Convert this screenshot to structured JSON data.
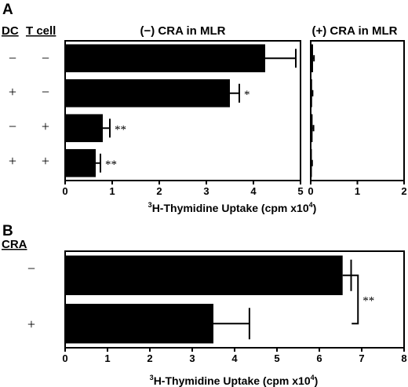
{
  "panel_a": {
    "letter": "A",
    "col_headers": [
      "DC",
      "T cell"
    ],
    "row_signs": [
      [
        "−",
        "−"
      ],
      [
        "+",
        "−"
      ],
      [
        "−",
        "+"
      ],
      [
        "+",
        "+"
      ]
    ]
  },
  "panel_b": {
    "letter": "B",
    "col_header": "CRA",
    "row_signs": [
      "−",
      "+"
    ]
  },
  "chart_data": [
    {
      "type": "bar",
      "orientation": "horizontal",
      "title": "(−) CRA in MLR",
      "categories": [
        "DC − / T cell −",
        "DC + / T cell −",
        "DC − / T cell +",
        "DC + / T cell +"
      ],
      "values": [
        4.25,
        3.5,
        0.8,
        0.65
      ],
      "errors": [
        0.65,
        0.2,
        0.15,
        0.1
      ],
      "annotations": [
        "",
        "*",
        "**",
        "**"
      ],
      "xlim": [
        0,
        5
      ],
      "ticks": [
        "0",
        "1",
        "2",
        "3",
        "4",
        "5"
      ],
      "xlabel_sup": "3",
      "xlabel_main": "H-Thymidine Uptake (cpm x10",
      "xlabel_sup2": "4",
      "xlabel_close": ")"
    },
    {
      "type": "bar",
      "orientation": "horizontal",
      "title": "(+) CRA in MLR",
      "categories": [
        "DC − / T cell −",
        "DC + / T cell −",
        "DC − / T cell +",
        "DC + / T cell +"
      ],
      "values": [
        0.05,
        0.03,
        0.04,
        0.02
      ],
      "errors": [
        0.02,
        0.01,
        0.02,
        0.01
      ],
      "xlim": [
        0,
        2
      ],
      "ticks": [
        "0",
        "1",
        "2"
      ]
    },
    {
      "type": "bar",
      "orientation": "horizontal",
      "categories": [
        "CRA −",
        "CRA +"
      ],
      "values": [
        6.55,
        3.5
      ],
      "errors": [
        0.2,
        0.85
      ],
      "significance": "**",
      "xlim": [
        0,
        8
      ],
      "ticks": [
        "0",
        "1",
        "2",
        "3",
        "4",
        "5",
        "6",
        "7",
        "8"
      ],
      "xlabel_sup": "3",
      "xlabel_main": "H-Thymidine Uptake (cpm x10",
      "xlabel_sup2": "4",
      "xlabel_close": ")"
    }
  ]
}
